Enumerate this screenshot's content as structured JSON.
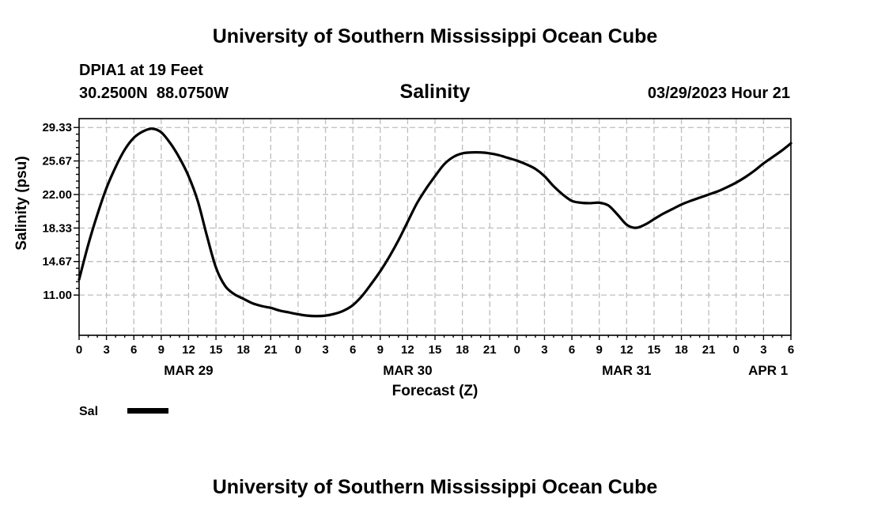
{
  "page": {
    "top_title": "University of Southern Mississippi Ocean Cube",
    "bottom_title": "University of Southern Mississippi Ocean Cube",
    "station_line": "DPIA1 at 19 Feet",
    "coords_line": "30.2500N  88.0750W",
    "datetime": "03/29/2023 Hour 21"
  },
  "chart_data": {
    "type": "line",
    "title": "Salinity",
    "xlabel": "Forecast (Z)",
    "ylabel": "Salinity (psu)",
    "xlim": [
      0,
      78
    ],
    "ylim": [
      6.6,
      30.3
    ],
    "x_tick_values": [
      0,
      3,
      6,
      9,
      12,
      15,
      18,
      21,
      24,
      27,
      30,
      33,
      36,
      39,
      42,
      45,
      48,
      51,
      54,
      57,
      60,
      63,
      66,
      69,
      72,
      75,
      78
    ],
    "x_tick_labels": [
      "0",
      "3",
      "6",
      "9",
      "12",
      "15",
      "18",
      "21",
      "0",
      "3",
      "6",
      "9",
      "12",
      "15",
      "18",
      "21",
      "0",
      "3",
      "6",
      "9",
      "12",
      "15",
      "18",
      "21",
      "0",
      "3",
      "6"
    ],
    "y_ticks": [
      11.0,
      14.67,
      18.33,
      22.0,
      25.67,
      29.33
    ],
    "y_tick_labels": [
      "11.00",
      "14.67",
      "18.33",
      "22.00",
      "25.67",
      "29.33"
    ],
    "date_labels": [
      {
        "x": 12,
        "label": "MAR 29"
      },
      {
        "x": 36,
        "label": "MAR 30"
      },
      {
        "x": 60,
        "label": "MAR 31"
      },
      {
        "x": 75.5,
        "label": "APR 1"
      }
    ],
    "grid": true,
    "series": [
      {
        "name": "Sal",
        "x": [
          0,
          1,
          2,
          3,
          4,
          5,
          6,
          7,
          8,
          9,
          10,
          11,
          12,
          13,
          14,
          15,
          16,
          17,
          18,
          19,
          20,
          21,
          22,
          23,
          24,
          25,
          26,
          27,
          28,
          29,
          30,
          31,
          32,
          33,
          34,
          35,
          36,
          37,
          38,
          39,
          40,
          41,
          42,
          43,
          44,
          45,
          46,
          47,
          48,
          49,
          50,
          51,
          52,
          53,
          54,
          55,
          56,
          57,
          58,
          59,
          60,
          61,
          62,
          63,
          64,
          65,
          66,
          67,
          68,
          69,
          70,
          71,
          72,
          73,
          74,
          75,
          76,
          77,
          78
        ],
        "values": [
          12.7,
          16.5,
          19.8,
          22.7,
          25.0,
          26.9,
          28.2,
          28.9,
          29.2,
          28.8,
          27.6,
          26.0,
          24.0,
          21.3,
          17.5,
          14.0,
          12.0,
          11.1,
          10.6,
          10.1,
          9.8,
          9.6,
          9.3,
          9.1,
          8.9,
          8.75,
          8.7,
          8.75,
          8.95,
          9.3,
          9.9,
          10.9,
          12.2,
          13.6,
          15.2,
          17.0,
          19.0,
          21.0,
          22.6,
          24.0,
          25.3,
          26.1,
          26.5,
          26.6,
          26.6,
          26.5,
          26.3,
          26.0,
          25.7,
          25.3,
          24.8,
          24.0,
          22.9,
          22.0,
          21.3,
          21.1,
          21.05,
          21.1,
          20.8,
          19.8,
          18.7,
          18.35,
          18.7,
          19.3,
          19.9,
          20.4,
          20.9,
          21.3,
          21.65,
          22.0,
          22.35,
          22.8,
          23.3,
          23.9,
          24.6,
          25.4,
          26.1,
          26.8,
          27.6
        ]
      }
    ],
    "legend": [
      {
        "label": "Sal",
        "color": "#000000"
      }
    ]
  }
}
